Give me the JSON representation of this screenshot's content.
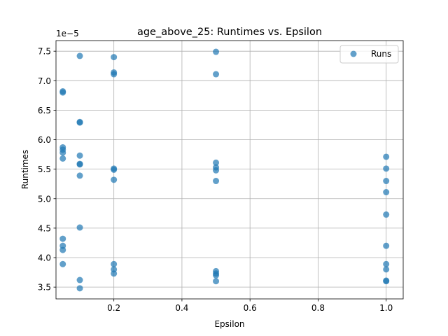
{
  "chart_data": {
    "type": "scatter",
    "title": "age_above_25: Runtimes vs. Epsilon",
    "xlabel": "Epsilon",
    "ylabel": "Runtimes",
    "y_offset_text": "1e−5",
    "xlim": [
      0.03,
      1.05
    ],
    "ylim": [
      3.3,
      7.68
    ],
    "x_ticks": [
      0.2,
      0.4,
      0.6,
      0.8,
      1.0
    ],
    "x_tick_labels": [
      "0.2",
      "0.4",
      "0.6",
      "0.8",
      "1.0"
    ],
    "y_ticks": [
      3.5,
      4.0,
      4.5,
      5.0,
      5.5,
      6.0,
      6.5,
      7.0,
      7.5
    ],
    "y_tick_labels": [
      "3.5",
      "4.0",
      "4.5",
      "5.0",
      "5.5",
      "6.0",
      "6.5",
      "7.0",
      "7.5"
    ],
    "grid": true,
    "legend_position": "top-right",
    "series": [
      {
        "name": "Runs",
        "color": "#1f77b4",
        "points": [
          {
            "x": 0.05,
            "y": 6.82
          },
          {
            "x": 0.05,
            "y": 6.8
          },
          {
            "x": 0.05,
            "y": 5.87
          },
          {
            "x": 0.05,
            "y": 5.83
          },
          {
            "x": 0.05,
            "y": 5.78
          },
          {
            "x": 0.05,
            "y": 5.68
          },
          {
            "x": 0.05,
            "y": 4.32
          },
          {
            "x": 0.05,
            "y": 4.2
          },
          {
            "x": 0.05,
            "y": 4.13
          },
          {
            "x": 0.05,
            "y": 3.89
          },
          {
            "x": 0.1,
            "y": 7.42
          },
          {
            "x": 0.1,
            "y": 6.3
          },
          {
            "x": 0.1,
            "y": 6.29
          },
          {
            "x": 0.1,
            "y": 5.73
          },
          {
            "x": 0.1,
            "y": 5.59
          },
          {
            "x": 0.1,
            "y": 5.58
          },
          {
            "x": 0.1,
            "y": 5.39
          },
          {
            "x": 0.1,
            "y": 4.51
          },
          {
            "x": 0.1,
            "y": 3.62
          },
          {
            "x": 0.1,
            "y": 3.48
          },
          {
            "x": 0.2,
            "y": 7.4
          },
          {
            "x": 0.2,
            "y": 7.14
          },
          {
            "x": 0.2,
            "y": 7.11
          },
          {
            "x": 0.2,
            "y": 5.51
          },
          {
            "x": 0.2,
            "y": 5.49
          },
          {
            "x": 0.2,
            "y": 5.32
          },
          {
            "x": 0.2,
            "y": 3.89
          },
          {
            "x": 0.2,
            "y": 3.8
          },
          {
            "x": 0.2,
            "y": 3.73
          },
          {
            "x": 0.5,
            "y": 7.49
          },
          {
            "x": 0.5,
            "y": 7.11
          },
          {
            "x": 0.5,
            "y": 5.61
          },
          {
            "x": 0.5,
            "y": 5.53
          },
          {
            "x": 0.5,
            "y": 5.48
          },
          {
            "x": 0.5,
            "y": 5.3
          },
          {
            "x": 0.5,
            "y": 3.77
          },
          {
            "x": 0.5,
            "y": 3.73
          },
          {
            "x": 0.5,
            "y": 3.7
          },
          {
            "x": 0.5,
            "y": 3.6
          },
          {
            "x": 1.0,
            "y": 5.71
          },
          {
            "x": 1.0,
            "y": 5.51
          },
          {
            "x": 1.0,
            "y": 5.3
          },
          {
            "x": 1.0,
            "y": 5.11
          },
          {
            "x": 1.0,
            "y": 4.73
          },
          {
            "x": 1.0,
            "y": 4.2
          },
          {
            "x": 1.0,
            "y": 3.89
          },
          {
            "x": 1.0,
            "y": 3.8
          },
          {
            "x": 1.0,
            "y": 3.61
          },
          {
            "x": 1.0,
            "y": 3.6
          }
        ]
      }
    ]
  }
}
